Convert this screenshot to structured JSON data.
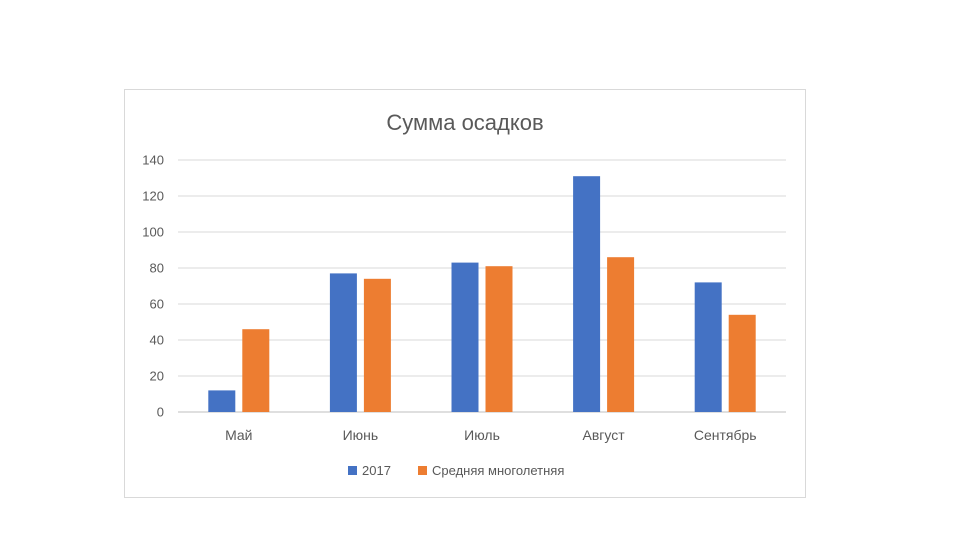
{
  "chart_data": {
    "type": "bar",
    "title": "Сумма осадков",
    "xlabel": "",
    "ylabel": "",
    "categories": [
      "Май",
      "Июнь",
      "Июль",
      "Август",
      "Сентябрь"
    ],
    "series": [
      {
        "name": "2017",
        "color": "#4472c4",
        "values": [
          12,
          77,
          83,
          131,
          72
        ]
      },
      {
        "name": "Средняя многолетняя",
        "color": "#ed7d31",
        "values": [
          46,
          74,
          81,
          86,
          54
        ]
      }
    ],
    "ylim": [
      0,
      140
    ],
    "yticks": [
      "0",
      "20",
      "40",
      "60",
      "80",
      "100",
      "120",
      "140"
    ],
    "grid": true,
    "legend_position": "bottom"
  }
}
